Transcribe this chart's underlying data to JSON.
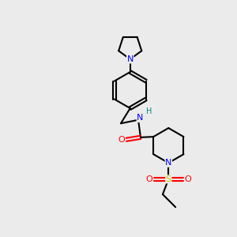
{
  "background_color": "#ebebeb",
  "atom_colors": {
    "N": "#0000ff",
    "O": "#ff0000",
    "S": "#cccc00",
    "C": "#000000",
    "H": "#008888"
  },
  "bond_color": "#000000",
  "bond_width": 1.5
}
